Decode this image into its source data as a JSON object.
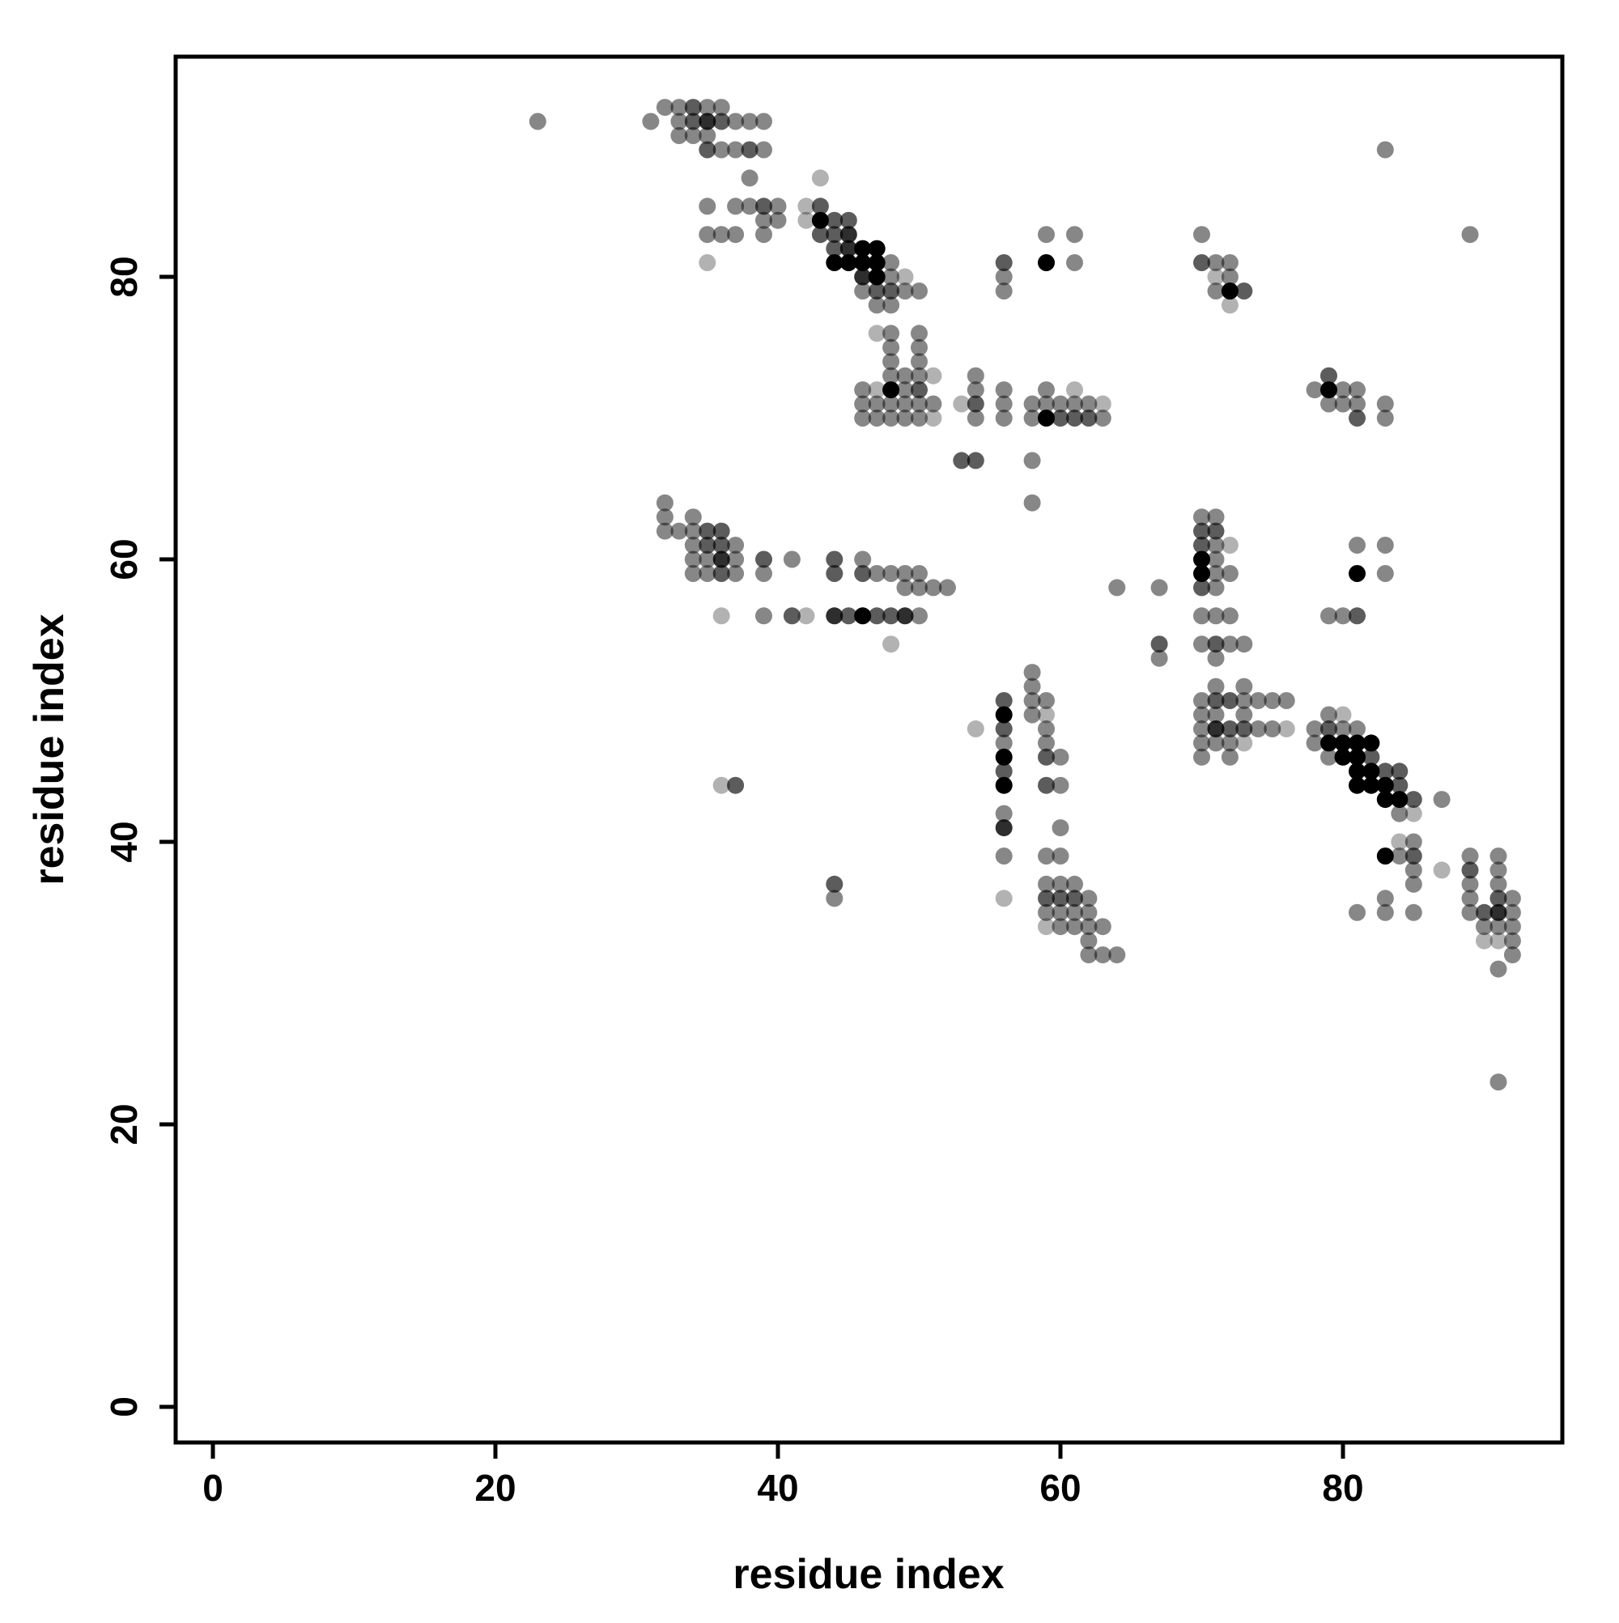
{
  "figure": {
    "xlabel": "residue index",
    "ylabel": "residue index",
    "background": "#ffffff",
    "point_color": "#000000"
  },
  "chart_data": {
    "type": "scatter",
    "title": "",
    "xlabel": "residue index",
    "ylabel": "residue index",
    "x_ticks": [
      0,
      20,
      40,
      60,
      80
    ],
    "y_ticks": [
      0,
      20,
      40,
      60,
      80
    ],
    "xlim": [
      -2.6,
      95.5
    ],
    "ylim": [
      -2.5,
      95.6
    ],
    "grid": false,
    "legend": "none",
    "marker": "circle",
    "marker_radius_px": 10.5,
    "alpha_levels": {
      "1": 0.3,
      "2": 0.47,
      "3": 0.64,
      "4": 0.82,
      "5": 1.0
    },
    "points_format": [
      "x",
      "y",
      "shade_level"
    ],
    "points": [
      [
        32,
        92,
        2
      ],
      [
        33,
        92,
        2
      ],
      [
        34,
        92,
        3
      ],
      [
        35,
        92,
        2
      ],
      [
        36,
        92,
        2
      ],
      [
        23,
        91,
        2
      ],
      [
        31,
        91,
        2
      ],
      [
        33,
        91,
        2
      ],
      [
        34,
        91,
        3
      ],
      [
        35,
        91,
        4
      ],
      [
        36,
        91,
        3
      ],
      [
        37,
        91,
        2
      ],
      [
        38,
        91,
        2
      ],
      [
        39,
        91,
        2
      ],
      [
        33,
        90,
        2
      ],
      [
        34,
        90,
        2
      ],
      [
        35,
        90,
        2
      ],
      [
        35,
        89,
        3
      ],
      [
        36,
        89,
        2
      ],
      [
        37,
        89,
        2
      ],
      [
        38,
        89,
        3
      ],
      [
        39,
        89,
        2
      ],
      [
        83,
        89,
        2
      ],
      [
        38,
        87,
        2
      ],
      [
        43,
        87,
        1
      ],
      [
        35,
        85,
        2
      ],
      [
        37,
        85,
        2
      ],
      [
        38,
        85,
        2
      ],
      [
        39,
        85,
        3
      ],
      [
        40,
        85,
        2
      ],
      [
        42,
        85,
        1
      ],
      [
        43,
        85,
        3
      ],
      [
        39,
        84,
        2
      ],
      [
        40,
        84,
        2
      ],
      [
        42,
        84,
        1
      ],
      [
        43,
        84,
        5
      ],
      [
        44,
        84,
        3
      ],
      [
        45,
        84,
        3
      ],
      [
        35,
        83,
        2
      ],
      [
        36,
        83,
        2
      ],
      [
        37,
        83,
        2
      ],
      [
        39,
        83,
        2
      ],
      [
        43,
        83,
        3
      ],
      [
        44,
        83,
        3
      ],
      [
        45,
        83,
        4
      ],
      [
        59,
        83,
        2
      ],
      [
        61,
        83,
        2
      ],
      [
        70,
        83,
        2
      ],
      [
        89,
        83,
        2
      ],
      [
        44,
        82,
        3
      ],
      [
        45,
        82,
        4
      ],
      [
        46,
        82,
        5
      ],
      [
        47,
        82,
        5
      ],
      [
        35,
        81,
        1
      ],
      [
        44,
        81,
        5
      ],
      [
        45,
        81,
        5
      ],
      [
        46,
        81,
        5
      ],
      [
        47,
        81,
        5
      ],
      [
        48,
        81,
        2
      ],
      [
        56,
        81,
        3
      ],
      [
        59,
        81,
        5
      ],
      [
        61,
        81,
        2
      ],
      [
        70,
        81,
        3
      ],
      [
        71,
        81,
        2
      ],
      [
        72,
        81,
        2
      ],
      [
        46,
        80,
        4
      ],
      [
        47,
        80,
        5
      ],
      [
        48,
        80,
        2
      ],
      [
        49,
        80,
        1
      ],
      [
        56,
        80,
        2
      ],
      [
        71,
        80,
        1
      ],
      [
        72,
        80,
        2
      ],
      [
        46,
        79,
        2
      ],
      [
        47,
        79,
        3
      ],
      [
        48,
        79,
        3
      ],
      [
        49,
        79,
        2
      ],
      [
        50,
        79,
        2
      ],
      [
        56,
        79,
        2
      ],
      [
        71,
        79,
        2
      ],
      [
        72,
        79,
        5
      ],
      [
        73,
        79,
        3
      ],
      [
        47,
        78,
        2
      ],
      [
        48,
        78,
        2
      ],
      [
        72,
        78,
        1
      ],
      [
        47,
        76,
        1
      ],
      [
        48,
        76,
        2
      ],
      [
        50,
        76,
        2
      ],
      [
        48,
        75,
        2
      ],
      [
        50,
        75,
        2
      ],
      [
        48,
        74,
        2
      ],
      [
        50,
        74,
        2
      ],
      [
        48,
        73,
        2
      ],
      [
        49,
        73,
        2
      ],
      [
        50,
        73,
        2
      ],
      [
        51,
        73,
        1
      ],
      [
        54,
        73,
        2
      ],
      [
        79,
        73,
        3
      ],
      [
        46,
        72,
        2
      ],
      [
        47,
        72,
        1
      ],
      [
        48,
        72,
        5
      ],
      [
        49,
        72,
        2
      ],
      [
        50,
        72,
        3
      ],
      [
        54,
        72,
        2
      ],
      [
        56,
        72,
        2
      ],
      [
        59,
        72,
        2
      ],
      [
        61,
        72,
        1
      ],
      [
        78,
        72,
        2
      ],
      [
        79,
        72,
        5
      ],
      [
        80,
        72,
        2
      ],
      [
        81,
        72,
        2
      ],
      [
        46,
        71,
        2
      ],
      [
        47,
        71,
        2
      ],
      [
        48,
        71,
        2
      ],
      [
        49,
        71,
        2
      ],
      [
        50,
        71,
        2
      ],
      [
        51,
        71,
        2
      ],
      [
        53,
        71,
        1
      ],
      [
        54,
        71,
        3
      ],
      [
        56,
        71,
        2
      ],
      [
        58,
        71,
        2
      ],
      [
        59,
        71,
        2
      ],
      [
        60,
        71,
        2
      ],
      [
        61,
        71,
        2
      ],
      [
        62,
        71,
        2
      ],
      [
        63,
        71,
        1
      ],
      [
        79,
        71,
        2
      ],
      [
        80,
        71,
        2
      ],
      [
        81,
        71,
        2
      ],
      [
        83,
        71,
        2
      ],
      [
        46,
        70,
        2
      ],
      [
        47,
        70,
        2
      ],
      [
        48,
        70,
        2
      ],
      [
        49,
        70,
        2
      ],
      [
        50,
        70,
        2
      ],
      [
        51,
        70,
        1
      ],
      [
        54,
        70,
        2
      ],
      [
        56,
        70,
        2
      ],
      [
        58,
        70,
        2
      ],
      [
        59,
        70,
        5
      ],
      [
        60,
        70,
        3
      ],
      [
        61,
        70,
        3
      ],
      [
        62,
        70,
        3
      ],
      [
        63,
        70,
        2
      ],
      [
        81,
        70,
        3
      ],
      [
        83,
        70,
        2
      ],
      [
        53,
        67,
        3
      ],
      [
        54,
        67,
        3
      ],
      [
        58,
        67,
        2
      ],
      [
        32,
        64,
        2
      ],
      [
        58,
        64,
        2
      ],
      [
        32,
        63,
        2
      ],
      [
        34,
        63,
        2
      ],
      [
        70,
        63,
        2
      ],
      [
        71,
        63,
        2
      ],
      [
        32,
        62,
        2
      ],
      [
        33,
        62,
        2
      ],
      [
        34,
        62,
        2
      ],
      [
        35,
        62,
        3
      ],
      [
        36,
        62,
        3
      ],
      [
        70,
        62,
        3
      ],
      [
        71,
        62,
        3
      ],
      [
        34,
        61,
        2
      ],
      [
        35,
        61,
        3
      ],
      [
        36,
        61,
        3
      ],
      [
        37,
        61,
        2
      ],
      [
        70,
        61,
        3
      ],
      [
        71,
        61,
        2
      ],
      [
        72,
        61,
        1
      ],
      [
        81,
        61,
        2
      ],
      [
        83,
        61,
        2
      ],
      [
        34,
        60,
        2
      ],
      [
        35,
        60,
        2
      ],
      [
        36,
        60,
        4
      ],
      [
        37,
        60,
        2
      ],
      [
        39,
        60,
        3
      ],
      [
        41,
        60,
        2
      ],
      [
        44,
        60,
        3
      ],
      [
        46,
        60,
        2
      ],
      [
        70,
        60,
        5
      ],
      [
        71,
        60,
        2
      ],
      [
        34,
        59,
        2
      ],
      [
        35,
        59,
        2
      ],
      [
        36,
        59,
        3
      ],
      [
        37,
        59,
        2
      ],
      [
        39,
        59,
        2
      ],
      [
        44,
        59,
        3
      ],
      [
        46,
        59,
        3
      ],
      [
        47,
        59,
        2
      ],
      [
        48,
        59,
        2
      ],
      [
        49,
        59,
        2
      ],
      [
        50,
        59,
        2
      ],
      [
        70,
        59,
        5
      ],
      [
        71,
        59,
        2
      ],
      [
        72,
        59,
        2
      ],
      [
        81,
        59,
        5
      ],
      [
        83,
        59,
        2
      ],
      [
        49,
        58,
        2
      ],
      [
        50,
        58,
        2
      ],
      [
        51,
        58,
        2
      ],
      [
        52,
        58,
        2
      ],
      [
        64,
        58,
        2
      ],
      [
        67,
        58,
        2
      ],
      [
        70,
        58,
        3
      ],
      [
        71,
        58,
        2
      ],
      [
        36,
        56,
        1
      ],
      [
        39,
        56,
        2
      ],
      [
        41,
        56,
        3
      ],
      [
        42,
        56,
        1
      ],
      [
        44,
        56,
        4
      ],
      [
        45,
        56,
        3
      ],
      [
        46,
        56,
        5
      ],
      [
        47,
        56,
        3
      ],
      [
        48,
        56,
        3
      ],
      [
        49,
        56,
        4
      ],
      [
        50,
        56,
        2
      ],
      [
        70,
        56,
        2
      ],
      [
        71,
        56,
        2
      ],
      [
        72,
        56,
        2
      ],
      [
        79,
        56,
        2
      ],
      [
        80,
        56,
        2
      ],
      [
        81,
        56,
        3
      ],
      [
        48,
        54,
        1
      ],
      [
        67,
        54,
        3
      ],
      [
        70,
        54,
        2
      ],
      [
        71,
        54,
        3
      ],
      [
        72,
        54,
        2
      ],
      [
        73,
        54,
        2
      ],
      [
        67,
        53,
        2
      ],
      [
        71,
        53,
        2
      ],
      [
        58,
        52,
        2
      ],
      [
        58,
        51,
        2
      ],
      [
        71,
        51,
        2
      ],
      [
        73,
        51,
        2
      ],
      [
        56,
        50,
        3
      ],
      [
        58,
        50,
        2
      ],
      [
        59,
        50,
        2
      ],
      [
        70,
        50,
        2
      ],
      [
        71,
        50,
        3
      ],
      [
        72,
        50,
        3
      ],
      [
        73,
        50,
        2
      ],
      [
        74,
        50,
        2
      ],
      [
        75,
        50,
        2
      ],
      [
        76,
        50,
        2
      ],
      [
        56,
        49,
        5
      ],
      [
        58,
        49,
        2
      ],
      [
        59,
        49,
        1
      ],
      [
        70,
        49,
        2
      ],
      [
        71,
        49,
        2
      ],
      [
        73,
        49,
        2
      ],
      [
        79,
        49,
        2
      ],
      [
        80,
        49,
        1
      ],
      [
        54,
        48,
        1
      ],
      [
        56,
        48,
        3
      ],
      [
        59,
        48,
        2
      ],
      [
        70,
        48,
        2
      ],
      [
        71,
        48,
        4
      ],
      [
        72,
        48,
        3
      ],
      [
        73,
        48,
        3
      ],
      [
        74,
        48,
        2
      ],
      [
        75,
        48,
        2
      ],
      [
        76,
        48,
        1
      ],
      [
        78,
        48,
        2
      ],
      [
        79,
        48,
        3
      ],
      [
        80,
        48,
        2
      ],
      [
        81,
        48,
        2
      ],
      [
        56,
        47,
        2
      ],
      [
        59,
        47,
        2
      ],
      [
        70,
        47,
        2
      ],
      [
        71,
        47,
        2
      ],
      [
        72,
        47,
        2
      ],
      [
        73,
        47,
        1
      ],
      [
        78,
        47,
        2
      ],
      [
        79,
        47,
        5
      ],
      [
        80,
        47,
        5
      ],
      [
        81,
        47,
        5
      ],
      [
        82,
        47,
        5
      ],
      [
        56,
        46,
        5
      ],
      [
        59,
        46,
        3
      ],
      [
        60,
        46,
        2
      ],
      [
        70,
        46,
        2
      ],
      [
        72,
        46,
        2
      ],
      [
        79,
        46,
        2
      ],
      [
        80,
        46,
        5
      ],
      [
        81,
        46,
        5
      ],
      [
        82,
        46,
        3
      ],
      [
        56,
        45,
        3
      ],
      [
        81,
        45,
        5
      ],
      [
        82,
        45,
        5
      ],
      [
        83,
        45,
        3
      ],
      [
        84,
        45,
        3
      ],
      [
        36,
        44,
        1
      ],
      [
        37,
        44,
        3
      ],
      [
        56,
        44,
        5
      ],
      [
        59,
        44,
        3
      ],
      [
        60,
        44,
        2
      ],
      [
        81,
        44,
        5
      ],
      [
        82,
        44,
        5
      ],
      [
        83,
        44,
        5
      ],
      [
        84,
        44,
        3
      ],
      [
        83,
        43,
        5
      ],
      [
        84,
        43,
        5
      ],
      [
        85,
        43,
        3
      ],
      [
        87,
        43,
        2
      ],
      [
        56,
        42,
        2
      ],
      [
        84,
        42,
        2
      ],
      [
        85,
        42,
        1
      ],
      [
        56,
        41,
        4
      ],
      [
        60,
        41,
        2
      ],
      [
        84,
        40,
        1
      ],
      [
        85,
        40,
        2
      ],
      [
        56,
        39,
        2
      ],
      [
        59,
        39,
        2
      ],
      [
        60,
        39,
        2
      ],
      [
        83,
        39,
        5
      ],
      [
        84,
        39,
        2
      ],
      [
        85,
        39,
        3
      ],
      [
        89,
        39,
        2
      ],
      [
        91,
        39,
        2
      ],
      [
        85,
        38,
        2
      ],
      [
        87,
        38,
        1
      ],
      [
        89,
        38,
        3
      ],
      [
        91,
        38,
        2
      ],
      [
        44,
        37,
        3
      ],
      [
        59,
        37,
        2
      ],
      [
        60,
        37,
        2
      ],
      [
        61,
        37,
        2
      ],
      [
        85,
        37,
        2
      ],
      [
        89,
        37,
        2
      ],
      [
        91,
        37,
        2
      ],
      [
        44,
        36,
        2
      ],
      [
        56,
        36,
        1
      ],
      [
        59,
        36,
        3
      ],
      [
        60,
        36,
        3
      ],
      [
        61,
        36,
        3
      ],
      [
        62,
        36,
        2
      ],
      [
        83,
        36,
        2
      ],
      [
        89,
        36,
        2
      ],
      [
        91,
        36,
        3
      ],
      [
        92,
        36,
        2
      ],
      [
        59,
        35,
        2
      ],
      [
        60,
        35,
        2
      ],
      [
        61,
        35,
        2
      ],
      [
        62,
        35,
        2
      ],
      [
        81,
        35,
        2
      ],
      [
        83,
        35,
        2
      ],
      [
        85,
        35,
        2
      ],
      [
        89,
        35,
        2
      ],
      [
        90,
        35,
        3
      ],
      [
        91,
        35,
        4
      ],
      [
        92,
        35,
        2
      ],
      [
        59,
        34,
        1
      ],
      [
        60,
        34,
        2
      ],
      [
        61,
        34,
        2
      ],
      [
        62,
        34,
        2
      ],
      [
        63,
        34,
        2
      ],
      [
        90,
        34,
        2
      ],
      [
        91,
        34,
        2
      ],
      [
        92,
        34,
        2
      ],
      [
        62,
        33,
        2
      ],
      [
        90,
        33,
        1
      ],
      [
        91,
        33,
        1
      ],
      [
        92,
        33,
        2
      ],
      [
        62,
        32,
        2
      ],
      [
        63,
        32,
        2
      ],
      [
        64,
        32,
        2
      ],
      [
        92,
        32,
        2
      ],
      [
        91,
        31,
        2
      ],
      [
        91,
        23,
        2
      ]
    ]
  }
}
